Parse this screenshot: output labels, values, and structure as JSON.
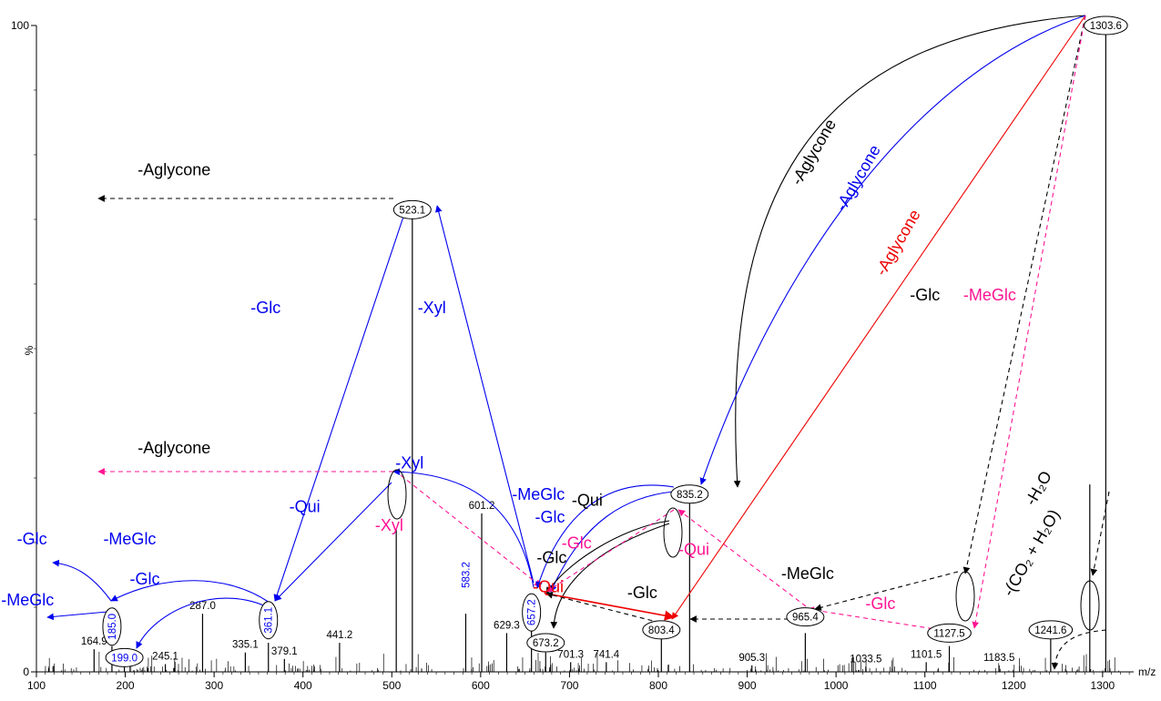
{
  "chart_data": {
    "type": "bar",
    "subtype": "mass-spectrum",
    "xlabel": "m/z",
    "ylabel": "%",
    "xlim": [
      100,
      1335
    ],
    "ylim": [
      0,
      100
    ],
    "x_ticks": [
      100,
      200,
      300,
      400,
      500,
      600,
      700,
      800,
      900,
      1000,
      1100,
      1200,
      1300
    ],
    "y_ticks": [
      "0",
      "100"
    ],
    "peaks": [
      {
        "mz": 164.9,
        "intensity": 3.5,
        "label": "164.9"
      },
      {
        "mz": 185.0,
        "intensity": 4.0
      },
      {
        "mz": 199.0,
        "intensity": 2.5
      },
      {
        "mz": 245.1,
        "intensity": 1.2,
        "label": "245.1"
      },
      {
        "mz": 287.0,
        "intensity": 9.0,
        "label": "287.0"
      },
      {
        "mz": 335.1,
        "intensity": 3.0,
        "label": "335.1"
      },
      {
        "mz": 361.1,
        "intensity": 4.5
      },
      {
        "mz": 379.1,
        "intensity": 2.0,
        "label": "379.1"
      },
      {
        "mz": 441.2,
        "intensity": 4.5,
        "label": "441.2"
      },
      {
        "mz": 505.0,
        "intensity": 22.0
      },
      {
        "mz": 523.1,
        "intensity": 72.5
      },
      {
        "mz": 583.2,
        "intensity": 9.0
      },
      {
        "mz": 601.2,
        "intensity": 24.5,
        "label": "601.2"
      },
      {
        "mz": 629.3,
        "intensity": 6.0,
        "label": "629.3"
      },
      {
        "mz": 657.2,
        "intensity": 9.0
      },
      {
        "mz": 673.2,
        "intensity": 3.0
      },
      {
        "mz": 701.3,
        "intensity": 1.5,
        "label": "701.3"
      },
      {
        "mz": 741.4,
        "intensity": 1.5,
        "label": "741.4"
      },
      {
        "mz": 803.4,
        "intensity": 6.5
      },
      {
        "mz": 835.2,
        "intensity": 27.0
      },
      {
        "mz": 905.3,
        "intensity": 1.0,
        "label": "905.3"
      },
      {
        "mz": 965.4,
        "intensity": 6.0
      },
      {
        "mz": 1033.5,
        "intensity": 0.8,
        "label": "1033.5"
      },
      {
        "mz": 1101.5,
        "intensity": 1.5,
        "label": "1101.5"
      },
      {
        "mz": 1127.5,
        "intensity": 4.0
      },
      {
        "mz": 1183.5,
        "intensity": 1.0,
        "label": "1183.5"
      },
      {
        "mz": 1241.6,
        "intensity": 6.5
      },
      {
        "mz": 1285.6,
        "intensity": 29.0
      },
      {
        "mz": 1303.6,
        "intensity": 100.0
      }
    ],
    "ion_labels": [
      {
        "mz": 1303.6,
        "text": "1303.6",
        "y": 100
      },
      {
        "mz": 523.1,
        "text": "523.1",
        "y": 71.5
      },
      {
        "mz": 835.2,
        "text": "835.2",
        "y": 27.5
      },
      {
        "mz": 657.2,
        "text": "657.2",
        "y": 9.2,
        "vertical": true,
        "color": "#0000ee"
      },
      {
        "mz": 673.2,
        "text": "673.2",
        "y": 4.5
      },
      {
        "mz": 803.4,
        "text": "803.4",
        "y": 6.5
      },
      {
        "mz": 965.4,
        "text": "965.4",
        "y": 8.5
      },
      {
        "mz": 1127.5,
        "text": "1127.5",
        "y": 6.0
      },
      {
        "mz": 1241.6,
        "text": "1241.6",
        "y": 6.5
      },
      {
        "mz": 361.1,
        "text": "361.1",
        "y": 8.0,
        "vertical": true,
        "color": "#0000ee"
      },
      {
        "mz": 185.0,
        "text": "185.0",
        "y": 7.0,
        "vertical": true,
        "color": "#0000ee"
      },
      {
        "mz": 199.0,
        "text": "199.0",
        "y": 2.2,
        "color": "#0000ee"
      },
      {
        "mz": 583.2,
        "text": "583.2",
        "y": 15.0,
        "vertical": true,
        "color": "#0000ee",
        "plain": true
      }
    ],
    "annotations": {
      "black": [
        {
          "text": "-Aglycone",
          "x": 980,
          "y": 80,
          "rotate": true
        },
        {
          "text": "-Aglycone",
          "x": 255,
          "y": 76.8
        },
        {
          "text": "-Glc",
          "x": 1100,
          "y": 57.5
        },
        {
          "text": "-Qui",
          "x": 720,
          "y": 25.7
        },
        {
          "text": "-Glc",
          "x": 680,
          "y": 16.8
        },
        {
          "text": "-MeGlc",
          "x": 968,
          "y": 14.4
        },
        {
          "text": "-Glc",
          "x": 782,
          "y": 11.4
        },
        {
          "text": "-(CO₂ + H₂O)",
          "x": 1225,
          "y": 18,
          "rotate": true
        },
        {
          "text": "-H₂O",
          "x": 1233,
          "y": 28,
          "rotate": true
        },
        {
          "text": "-Aglycone",
          "x": 255,
          "y": 33.8
        }
      ],
      "blue": [
        {
          "text": "-Aglycone",
          "x": 1030,
          "y": 76,
          "rotate": true
        },
        {
          "text": "-Glc",
          "x": 358,
          "y": 55.5
        },
        {
          "text": "-Xyl",
          "x": 545,
          "y": 55.5
        },
        {
          "text": "-Xyl",
          "x": 520,
          "y": 31.5
        },
        {
          "text": "-Qui",
          "x": 402,
          "y": 24.7
        },
        {
          "text": "-MeGlc",
          "x": 665,
          "y": 26.6
        },
        {
          "text": "-Glc",
          "x": 678,
          "y": 23.1
        },
        {
          "text": "-Glc",
          "x": 95,
          "y": 19.7
        },
        {
          "text": "-MeGlc",
          "x": 205,
          "y": 19.7
        },
        {
          "text": "-Glc",
          "x": 222,
          "y": 13.5
        },
        {
          "text": "-MeGlc",
          "x": 90,
          "y": 10.3
        }
      ],
      "red": [
        {
          "text": "-Aglycone",
          "x": 1075,
          "y": 66,
          "rotate": true
        },
        {
          "text": "-Qui",
          "x": 676,
          "y": 12.3
        }
      ],
      "magenta": [
        {
          "text": "-MeGlc",
          "x": 1173,
          "y": 57.5
        },
        {
          "text": "-Xyl",
          "x": 497,
          "y": 21.8
        },
        {
          "text": "-Glc",
          "x": 708,
          "y": 19.1
        },
        {
          "text": "-Qui",
          "x": 840,
          "y": 18.1
        },
        {
          "text": "-Glc",
          "x": 1050,
          "y": 9.7
        }
      ]
    }
  }
}
